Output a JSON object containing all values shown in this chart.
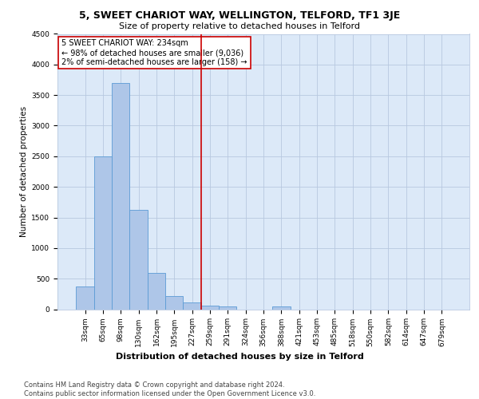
{
  "title": "5, SWEET CHARIOT WAY, WELLINGTON, TELFORD, TF1 3JE",
  "subtitle": "Size of property relative to detached houses in Telford",
  "xlabel": "Distribution of detached houses by size in Telford",
  "ylabel": "Number of detached properties",
  "bar_labels": [
    "33sqm",
    "65sqm",
    "98sqm",
    "130sqm",
    "162sqm",
    "195sqm",
    "227sqm",
    "259sqm",
    "291sqm",
    "324sqm",
    "356sqm",
    "388sqm",
    "421sqm",
    "453sqm",
    "485sqm",
    "518sqm",
    "550sqm",
    "582sqm",
    "614sqm",
    "647sqm",
    "679sqm"
  ],
  "bar_values": [
    370,
    2500,
    3700,
    1630,
    600,
    220,
    110,
    60,
    40,
    0,
    0,
    50,
    0,
    0,
    0,
    0,
    0,
    0,
    0,
    0,
    0
  ],
  "bar_color": "#aec6e8",
  "bar_edge_color": "#5b9bd5",
  "vline_x": 6.5,
  "vline_color": "#cc0000",
  "annotation_text": "5 SWEET CHARIOT WAY: 234sqm\n← 98% of detached houses are smaller (9,036)\n2% of semi-detached houses are larger (158) →",
  "annotation_box_color": "#ffffff",
  "annotation_box_edge": "#cc0000",
  "ylim": [
    0,
    4500
  ],
  "yticks": [
    0,
    500,
    1000,
    1500,
    2000,
    2500,
    3000,
    3500,
    4000,
    4500
  ],
  "footer": "Contains HM Land Registry data © Crown copyright and database right 2024.\nContains public sector information licensed under the Open Government Licence v3.0.",
  "bg_color": "#dce9f8",
  "title_fontsize": 9,
  "subtitle_fontsize": 8,
  "ylabel_fontsize": 7.5,
  "xlabel_fontsize": 8,
  "tick_fontsize": 6.5,
  "annotation_fontsize": 7,
  "footer_fontsize": 6
}
